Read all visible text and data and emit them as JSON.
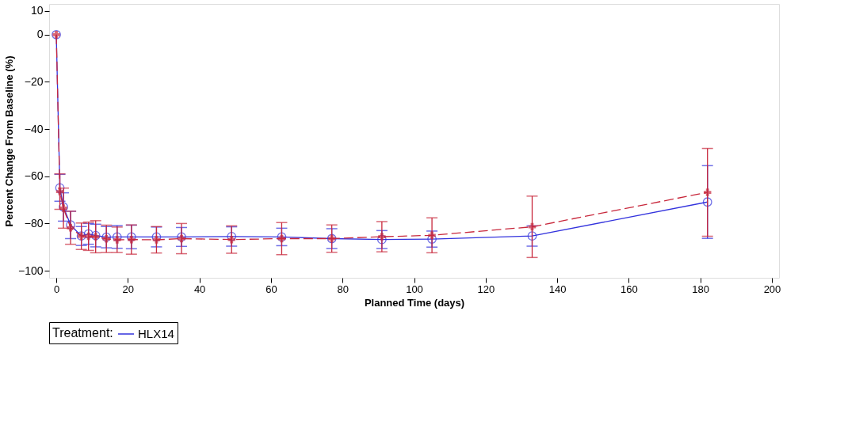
{
  "chart_data": {
    "type": "line",
    "xlabel": "Planned Time (days)",
    "ylabel": "Percent Change From Baseline (%)",
    "legend_title": "Treatment:",
    "legend": "bottom",
    "grid": false,
    "x": [
      0,
      1,
      2,
      4,
      7,
      9,
      11,
      14,
      17,
      21,
      28,
      35,
      49,
      63,
      77,
      91,
      105,
      133,
      182
    ],
    "xlim": [
      -2,
      202
    ],
    "xticks": [
      0,
      20,
      40,
      60,
      80,
      100,
      120,
      140,
      160,
      180,
      200
    ],
    "ylim": [
      -103,
      13
    ],
    "yticks": [
      -100,
      -80,
      -60,
      -40,
      -20,
      0,
      10
    ],
    "series": [
      {
        "name": "HLX14",
        "color": "#3333dd",
        "marker": "circle",
        "line_style": "solid",
        "values": [
          0,
          -64.9,
          -73,
          -80.6,
          -85.3,
          -84.4,
          -85.1,
          -85.8,
          -85.7,
          -85.7,
          -85.7,
          -85.7,
          -85.5,
          -85.7,
          -86.4,
          -86.8,
          -86.6,
          -85.3,
          -70.9
        ],
        "errors": [
          null,
          5.7,
          6,
          5.8,
          4,
          4.4,
          4.8,
          4.5,
          4.8,
          5,
          4.2,
          4,
          4.1,
          3.7,
          4.2,
          3.8,
          3.4,
          4.3,
          15.4
        ]
      },
      {
        "color": "#c8283c",
        "marker": "cross",
        "line_style": "dashed",
        "values": [
          0,
          -66.5,
          -73.5,
          -81.8,
          -85.4,
          -85.4,
          -85.6,
          -86.5,
          -86.9,
          -86.8,
          -86.9,
          -86.4,
          -86.8,
          -86.4,
          -86.4,
          -85.6,
          -85,
          -81.4,
          -66.8
        ],
        "errors": [
          null,
          7.5,
          8.5,
          7,
          5.6,
          6,
          6.8,
          5.8,
          5.4,
          6.2,
          5.6,
          6.4,
          5.8,
          6.8,
          5.8,
          6.4,
          7.4,
          13,
          18.6
        ]
      }
    ]
  }
}
